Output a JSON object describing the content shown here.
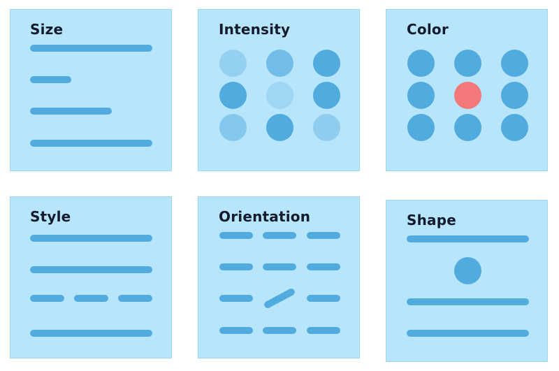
{
  "colors": {
    "panel": "#b7e5fb",
    "mark": "#52abdf",
    "accent": "#f2787a",
    "title": "#141b2d"
  },
  "panels": {
    "size": {
      "title": "Size"
    },
    "intensity": {
      "title": "Intensity",
      "dot_opacity": [
        0.35,
        0.7,
        1,
        1,
        0.25,
        1,
        0.5,
        1,
        0.4
      ]
    },
    "color": {
      "title": "Color",
      "highlight_index": 4
    },
    "style": {
      "title": "Style",
      "line_styles": [
        "solid",
        "solid",
        "dashed",
        "solid"
      ]
    },
    "orientation": {
      "title": "Orientation",
      "rotated_index": 7,
      "rotation_deg": -28
    },
    "shape": {
      "title": "Shape",
      "odd_shape": "circle"
    }
  }
}
